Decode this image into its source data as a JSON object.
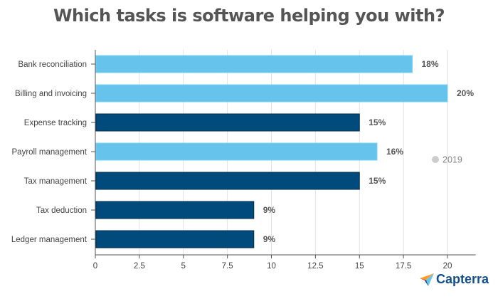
{
  "chart_data": {
    "type": "bar",
    "orientation": "horizontal",
    "title": "Which tasks is software helping you with?",
    "categories": [
      "Bank reconciliation",
      "Billing and invoicing",
      "Expense tracking",
      "Payroll management",
      "Tax management",
      "Tax deduction",
      "Ledger management"
    ],
    "values": [
      18,
      20,
      15,
      16,
      15,
      9,
      9
    ],
    "data_labels": [
      "18%",
      "20%",
      "15%",
      "16%",
      "15%",
      "9%",
      "9%"
    ],
    "bar_colors": [
      "#65c3ec",
      "#65c3ec",
      "#004a7c",
      "#65c3ec",
      "#004a7c",
      "#004a7c",
      "#004a7c"
    ],
    "xlim": [
      0,
      21.6
    ],
    "xticks": [
      "0",
      "2.5",
      "5",
      "7.5",
      "10",
      "12.5",
      "15",
      "17.5",
      "20"
    ],
    "xlabel": "",
    "ylabel": "",
    "grid": true,
    "legend": {
      "entries": [
        "2019"
      ],
      "color": "#cccccc",
      "placement": "right"
    }
  },
  "brand": {
    "name": "Capterra"
  }
}
